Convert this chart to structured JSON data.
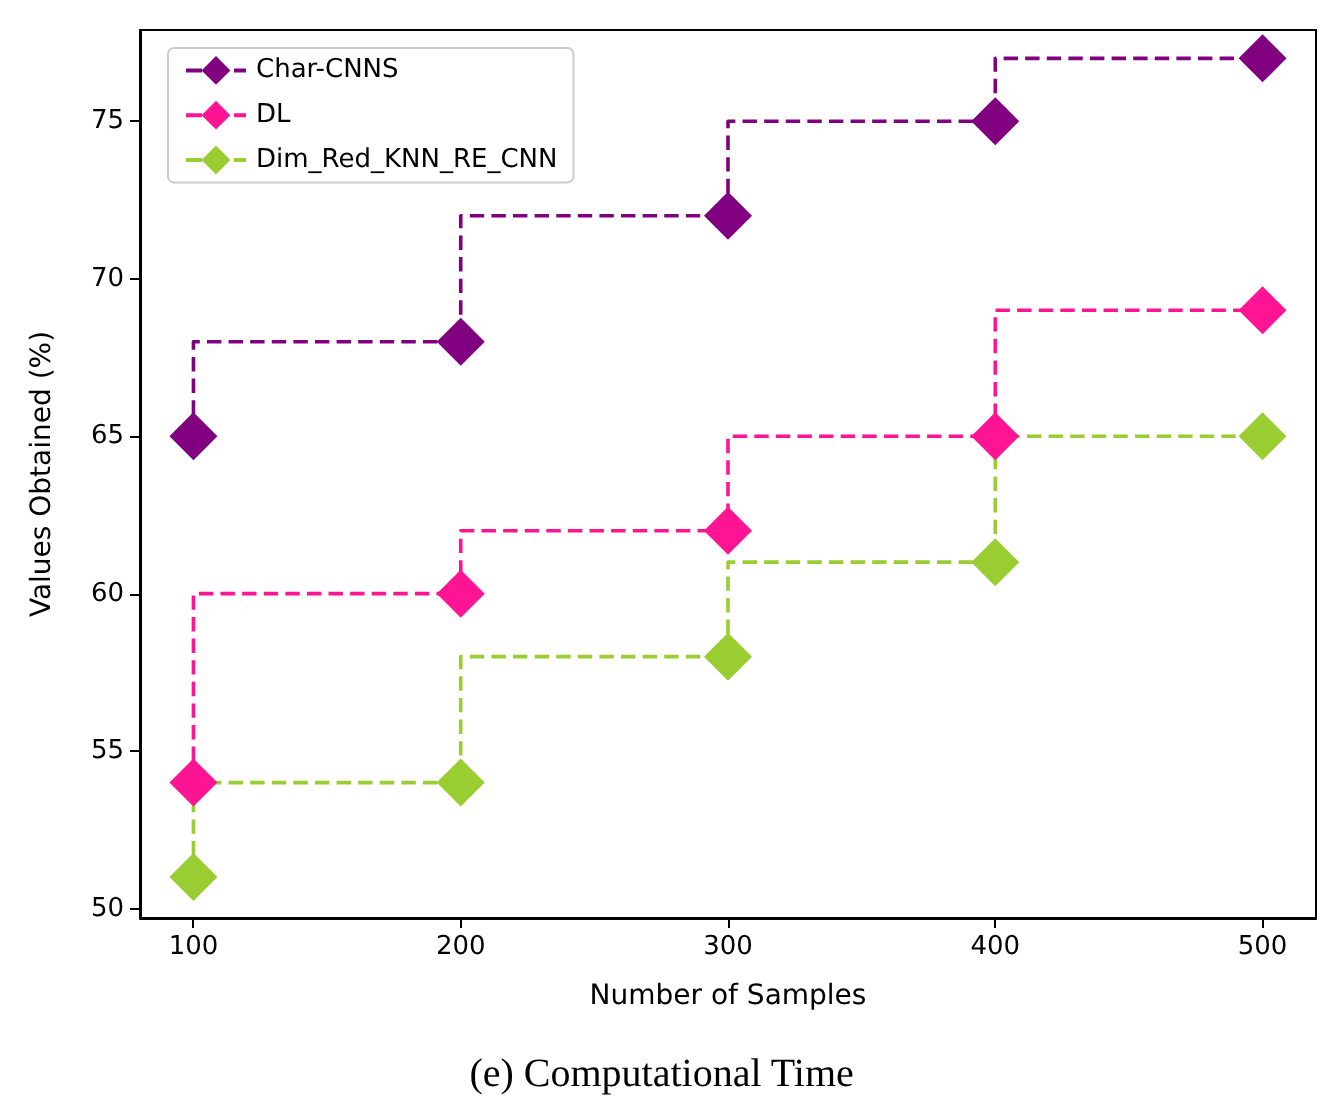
{
  "chart_data": {
    "type": "step",
    "xlabel": "Number of Samples",
    "ylabel": "Values Obtained (%)",
    "annotations": [
      "(e) Computational Time"
    ],
    "x": [
      100,
      200,
      300,
      400,
      500
    ],
    "series": [
      {
        "name": "Char-CNNS",
        "color": "#800080",
        "values": [
          65,
          68,
          72,
          75,
          77
        ]
      },
      {
        "name": "DL",
        "color": "#ff1493",
        "values": [
          54,
          60,
          62,
          65,
          69
        ]
      },
      {
        "name": "Dim_Red_KNN_RE_CNN",
        "color": "#9acd32",
        "values": [
          51,
          54,
          58,
          61,
          65
        ]
      }
    ],
    "xlim": [
      80,
      520
    ],
    "xticks": [
      100,
      200,
      300,
      400,
      500
    ],
    "ylim": [
      49.7,
      77.9
    ],
    "yticks": [
      50,
      55,
      60,
      65,
      70,
      75
    ],
    "grid": false,
    "legend": "top left",
    "marker": "diamond",
    "line_style": "dashed"
  }
}
